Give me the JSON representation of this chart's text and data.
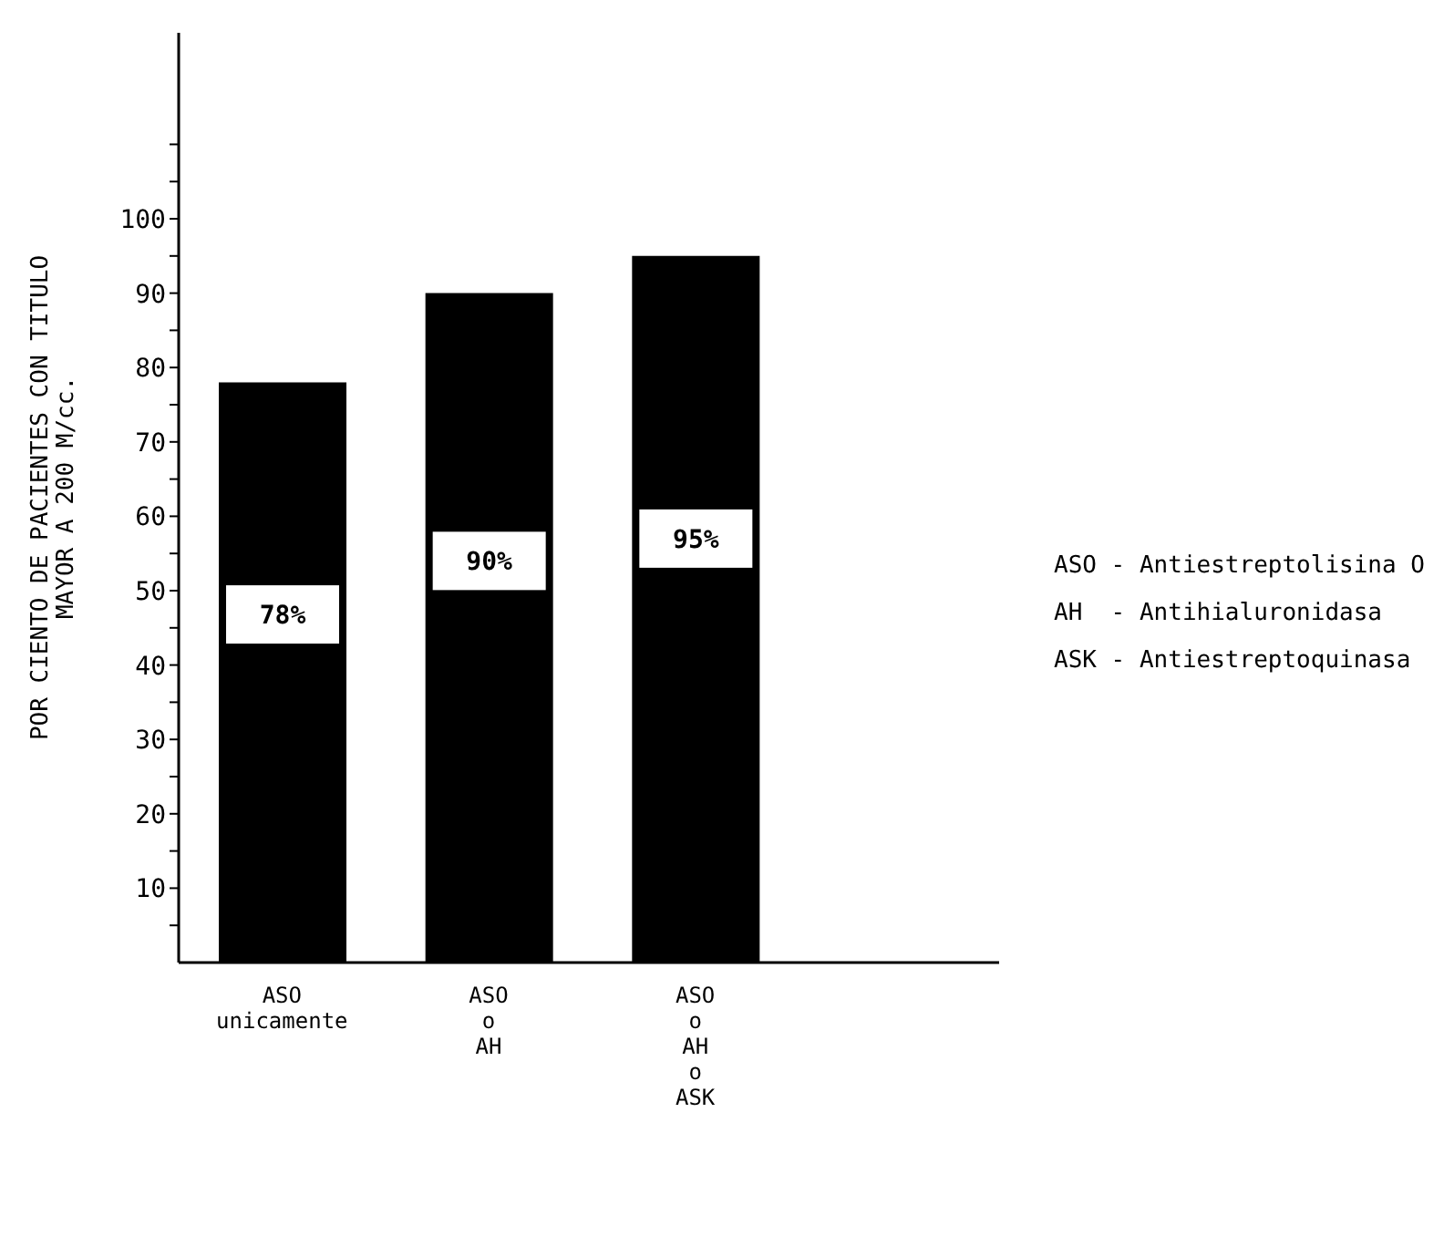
{
  "chart_data": {
    "type": "bar",
    "ylabel": "POR CIENTO DE PACIENTES CON TITULO\nMAYOR A 200 M/cc.",
    "categories": [
      "ASO\nunicamente",
      "ASO\no\nAH",
      "ASO\no\nAH\no\nASK"
    ],
    "values": [
      78,
      90,
      95
    ],
    "color": "#000000",
    "value_labels": [
      "78%",
      "90%",
      "95%"
    ],
    "ylim": [
      0,
      125
    ],
    "yticks": [
      {
        "value": 5,
        "label": null
      },
      10,
      {
        "value": 15,
        "label": null
      },
      20,
      {
        "value": 25,
        "label": null
      },
      30,
      {
        "value": 35,
        "label": null
      },
      40,
      {
        "value": 45,
        "label": null
      },
      50,
      {
        "value": 55,
        "label": null
      },
      60,
      {
        "value": 65,
        "label": null
      },
      70,
      {
        "value": 75,
        "label": null
      },
      80,
      {
        "value": 85,
        "label": null
      },
      90,
      {
        "value": 95,
        "label": null
      },
      100,
      {
        "value": 105,
        "label": null
      },
      {
        "value": 110,
        "label": null
      }
    ],
    "grid": false,
    "legend": false,
    "annotations": [
      "ASO - Antiestreptolisina O",
      "AH  - Antihialuronidasa",
      "ASK - Antiestreptoquinasa"
    ]
  }
}
